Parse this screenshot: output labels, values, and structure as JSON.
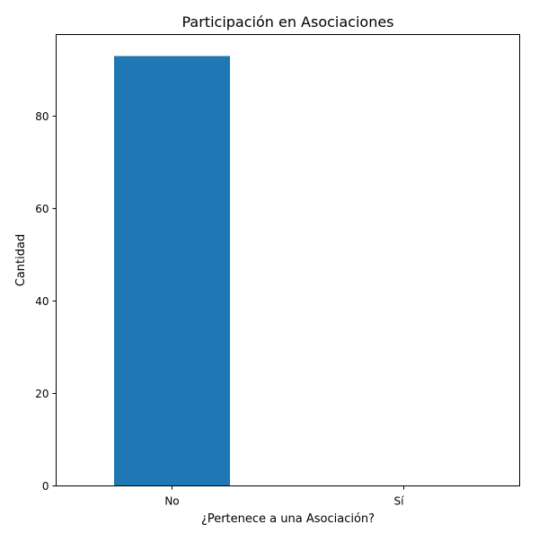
{
  "chart_data": {
    "type": "bar",
    "title": "Participación en Asociaciones",
    "xlabel": "¿Pertenece a una Asociación?",
    "ylabel": "Cantidad",
    "categories": [
      "No",
      "Sí"
    ],
    "values": [
      93,
      0
    ],
    "ylim": [
      0,
      97.65
    ],
    "yticks": [
      0,
      20,
      40,
      60,
      80
    ],
    "grid": false,
    "legend": "none",
    "bar_color": "#1f77b4"
  }
}
